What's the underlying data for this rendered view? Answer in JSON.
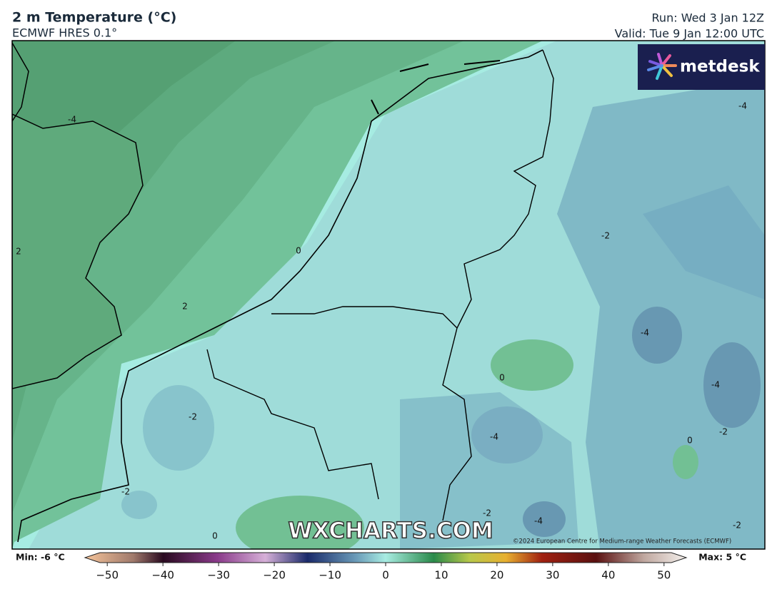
{
  "header": {
    "title": "2 m Temperature (°C)",
    "subtitle": "ECMWF HRES 0.1°",
    "run": "Run: Wed 3 Jan 12Z",
    "valid": "Valid: Tue 9 Jan 12:00 UTC"
  },
  "logo": "metdesk",
  "watermark": "WXCHARTS.COM",
  "copyright": "©2024 European Centre for Medium-range Weather Forecasts (ECMWF)",
  "contour_labels": [
    -4,
    2,
    0,
    2,
    -2,
    -4,
    -4,
    -4,
    0,
    -2,
    -4,
    0,
    -2,
    -2,
    -2,
    -4,
    -2,
    0
  ],
  "colorbar": {
    "min_label": "Min: -6 °C",
    "max_label": "Max: 5 °C",
    "range": [
      -54,
      54
    ],
    "ticks": [
      {
        "value": -50,
        "label": "−50"
      },
      {
        "value": -40,
        "label": "−40"
      },
      {
        "value": -30,
        "label": "−30"
      },
      {
        "value": -20,
        "label": "−20"
      },
      {
        "value": -10,
        "label": "−10"
      },
      0,
      10,
      20,
      30,
      40,
      50
    ]
  }
}
